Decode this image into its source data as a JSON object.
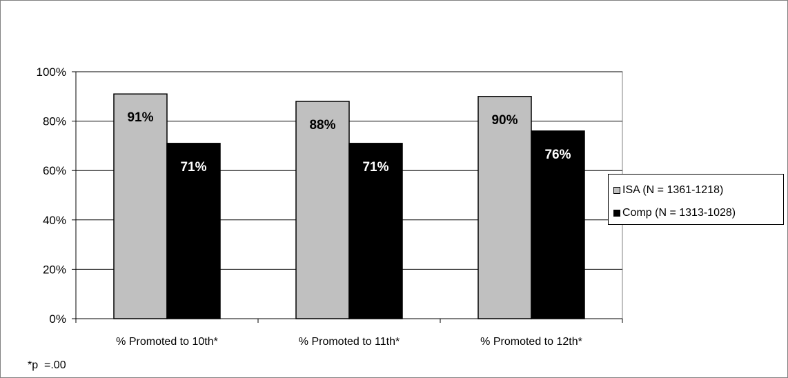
{
  "chart_data": {
    "type": "bar",
    "categories": [
      "% Promoted to 10th*",
      "% Promoted to 11th*",
      "% Promoted to 12th*"
    ],
    "series": [
      {
        "name": "ISA (N = 1361-1218)",
        "values": [
          91,
          88,
          90
        ],
        "labels": [
          "91%",
          "88%",
          "90%"
        ],
        "color": "#c0c0c0",
        "label_color": "#000000"
      },
      {
        "name": "Comp (N = 1313-1028)",
        "values": [
          71,
          71,
          76
        ],
        "labels": [
          "71%",
          "71%",
          "76%"
        ],
        "color": "#000000",
        "label_color": "#ffffff"
      }
    ],
    "ylim": [
      0,
      100
    ],
    "yticks": [
      0,
      20,
      40,
      60,
      80,
      100
    ],
    "ytick_labels": [
      "0%",
      "20%",
      "40%",
      "60%",
      "80%",
      "100%"
    ],
    "grid": true,
    "legend_position": "right",
    "footnote": "*p  =.00"
  }
}
